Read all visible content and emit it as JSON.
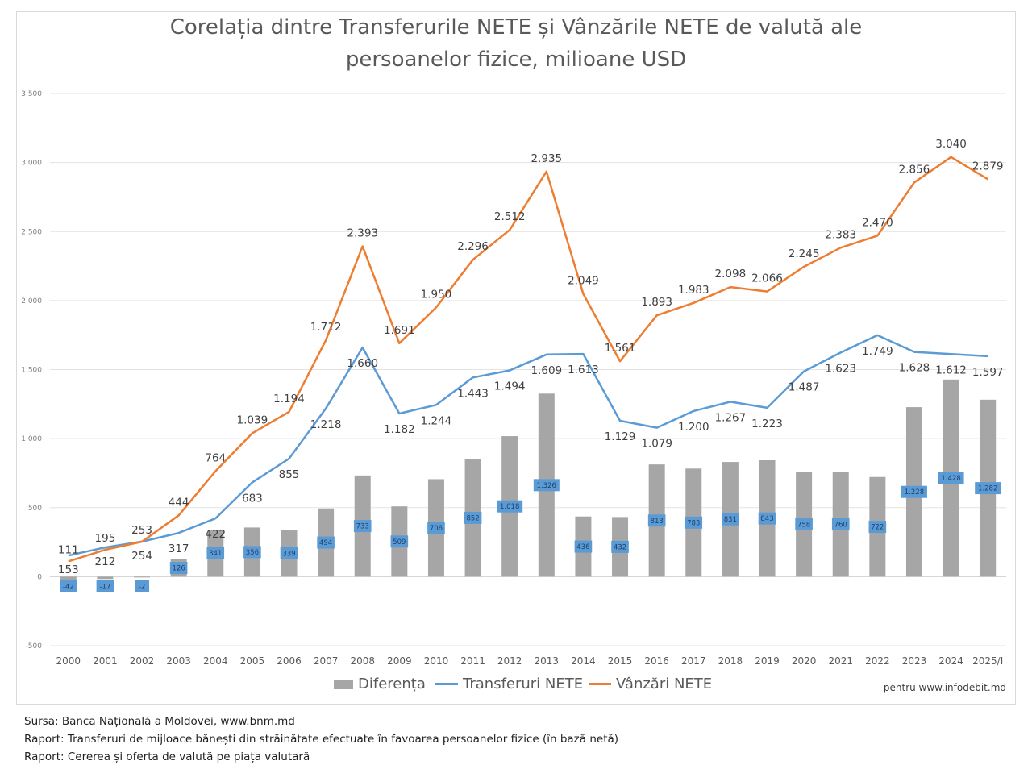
{
  "title_line1": "Corelația dintre Transferurile NETE și Vânzările NETE de valută ale",
  "title_line2": "persoanelor fizice, milioane USD",
  "credit": "pentru www.infodebit.md",
  "sources": [
    "Sursa: Banca Națională a Moldovei, www.bnm.md",
    "Raport: Transferuri de mijloace bănești din străinătate efectuate în favoarea persoanelor fizice (în bază netă)",
    "Raport: Cererea și oferta de valută pe piața valutară"
  ],
  "colors": {
    "bar": "#a6a6a6",
    "transferuri": "#5b9bd5",
    "vanzari": "#ed7d31",
    "label_box": "#5b9bd5"
  },
  "chart_data": {
    "type": "bar+line",
    "title": "Corelația dintre Transferurile NETE și Vânzările NETE de valută ale persoanelor fizice, milioane USD",
    "categories": [
      "2000",
      "2001",
      "2002",
      "2003",
      "2004",
      "2005",
      "2006",
      "2007",
      "2008",
      "2009",
      "2010",
      "2011",
      "2012",
      "2013",
      "2014",
      "2015",
      "2016",
      "2017",
      "2018",
      "2019",
      "2020",
      "2021",
      "2022",
      "2023",
      "2024",
      "2025/I"
    ],
    "y_ticks": [
      -500,
      0,
      500,
      1000,
      1500,
      2000,
      2500,
      3000,
      3500
    ],
    "y_tick_labels": [
      "-500",
      "0",
      "500",
      "1.000",
      "1.500",
      "2.000",
      "2.500",
      "3.000",
      "3.500"
    ],
    "ylim": [
      -500,
      3500
    ],
    "grid": true,
    "legend_position": "bottom",
    "series": [
      {
        "name": "Diferența",
        "type": "bar",
        "values": [
          -42,
          -17,
          -2,
          126,
          341,
          356,
          339,
          494,
          733,
          509,
          706,
          852,
          1018,
          1326,
          436,
          432,
          813,
          783,
          831,
          843,
          758,
          760,
          722,
          1228,
          1428,
          1282
        ],
        "labels": [
          "-42",
          "-17",
          "-2",
          "126",
          "341",
          "356",
          "339",
          "494",
          "733",
          "509",
          "706",
          "852",
          "1.018",
          "1.326",
          "436",
          "432",
          "813",
          "783",
          "831",
          "843",
          "758",
          "760",
          "722",
          "1.228",
          "1.428",
          "1.282"
        ]
      },
      {
        "name": "Transferuri NETE",
        "type": "line",
        "values": [
          153,
          212,
          254,
          317,
          422,
          683,
          855,
          1218,
          1660,
          1182,
          1244,
          1443,
          1494,
          1609,
          1613,
          1129,
          1079,
          1200,
          1267,
          1223,
          1487,
          1623,
          1749,
          1628,
          1612,
          1597
        ],
        "labels": [
          "153",
          "212",
          "254",
          "317",
          "422",
          "683",
          "855",
          "1.218",
          "1.660",
          "1.182",
          "1.244",
          "1.443",
          "1.494",
          "1.609",
          "1.613",
          "1.129",
          "1.079",
          "1.200",
          "1.267",
          "1.223",
          "1.487",
          "1.623",
          "1.749",
          "1.628",
          "1.612",
          "1.597"
        ]
      },
      {
        "name": "Vânzări NETE",
        "type": "line",
        "values": [
          111,
          195,
          253,
          444,
          764,
          1039,
          1194,
          1712,
          2393,
          1691,
          1950,
          2296,
          2512,
          2935,
          2049,
          1561,
          1893,
          1983,
          2098,
          2066,
          2245,
          2383,
          2470,
          2856,
          3040,
          2879
        ],
        "labels": [
          "111",
          "195",
          "253",
          "444",
          "764",
          "1.039",
          "1.194",
          "1.712",
          "2.393",
          "1.691",
          "1.950",
          "2.296",
          "2.512",
          "2.935",
          "2.049",
          "1.561",
          "1.893",
          "1.983",
          "2.098",
          "2.066",
          "2.245",
          "2.383",
          "2.470",
          "2.856",
          "3.040",
          "2.879"
        ]
      }
    ]
  }
}
